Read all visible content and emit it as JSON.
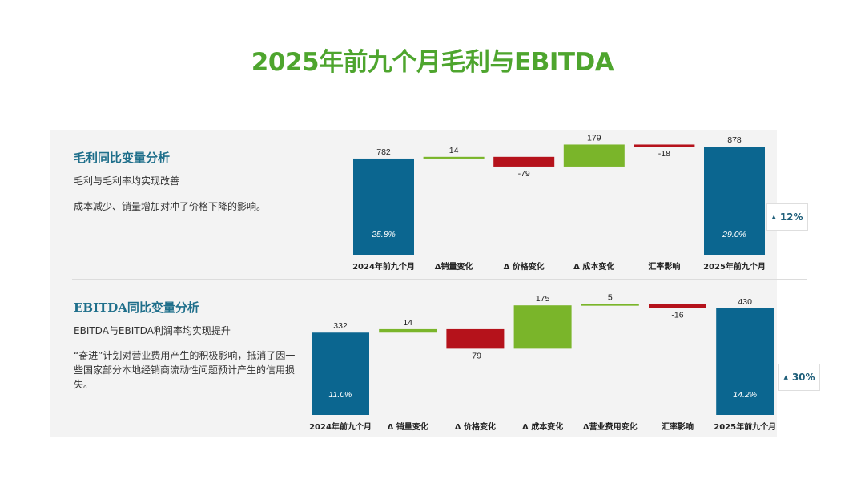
{
  "title": "2025年前九个月毛利与EBITDA",
  "colors": {
    "base": "#0b6690",
    "increase": "#7ab52a",
    "decrease": "#b5121b",
    "title": "#4ea52e"
  },
  "sections": [
    {
      "heading": "毛利同比变量分析",
      "lines": [
        "毛利与毛利率均实现改善",
        "成本减少、销量增加对冲了价格下降的影响。"
      ],
      "badge": "12%"
    },
    {
      "heading": "EBITDA同比变量分析",
      "lines": [
        "EBITDA与EBITDA利润率均实现提升",
        "“奋进”计划对营业费用产生的积极影响，抵消了因一些国家部分本地经销商流动性问题预计产生的信用损失。"
      ],
      "badge": "30%"
    }
  ],
  "chart_data": [
    {
      "type": "bar",
      "title": "毛利同比变量分析",
      "subtype": "waterfall",
      "categories": [
        "2024年前九个月",
        "Δ销量变化",
        "Δ 价格变化",
        "Δ 成本变化",
        "汇率影响",
        "2025年前九个月"
      ],
      "values": [
        782,
        14,
        -79,
        179,
        -18,
        878
      ],
      "kinds": [
        "total",
        "delta",
        "delta",
        "delta",
        "delta",
        "total"
      ],
      "value_labels": [
        "782",
        "14",
        "-79",
        "179",
        "-18",
        "878"
      ],
      "margin_labels": [
        "25.8%",
        "",
        "",
        "",
        "",
        "29.0%"
      ]
    },
    {
      "type": "bar",
      "title": "EBITDA同比变量分析",
      "subtype": "waterfall",
      "categories": [
        "2024年前九个月",
        "Δ 销量变化",
        "Δ 价格变化",
        "Δ 成本变化",
        "Δ营业费用变化",
        "汇率影响",
        "2025年前九个月"
      ],
      "values": [
        332,
        14,
        -79,
        175,
        5,
        -16,
        430
      ],
      "kinds": [
        "total",
        "delta",
        "delta",
        "delta",
        "delta",
        "delta",
        "total"
      ],
      "value_labels": [
        "332",
        "14",
        "-79",
        "175",
        "5",
        "-16",
        "430"
      ],
      "margin_labels": [
        "11.0%",
        "",
        "",
        "",
        "",
        "",
        "14.2%"
      ]
    }
  ]
}
